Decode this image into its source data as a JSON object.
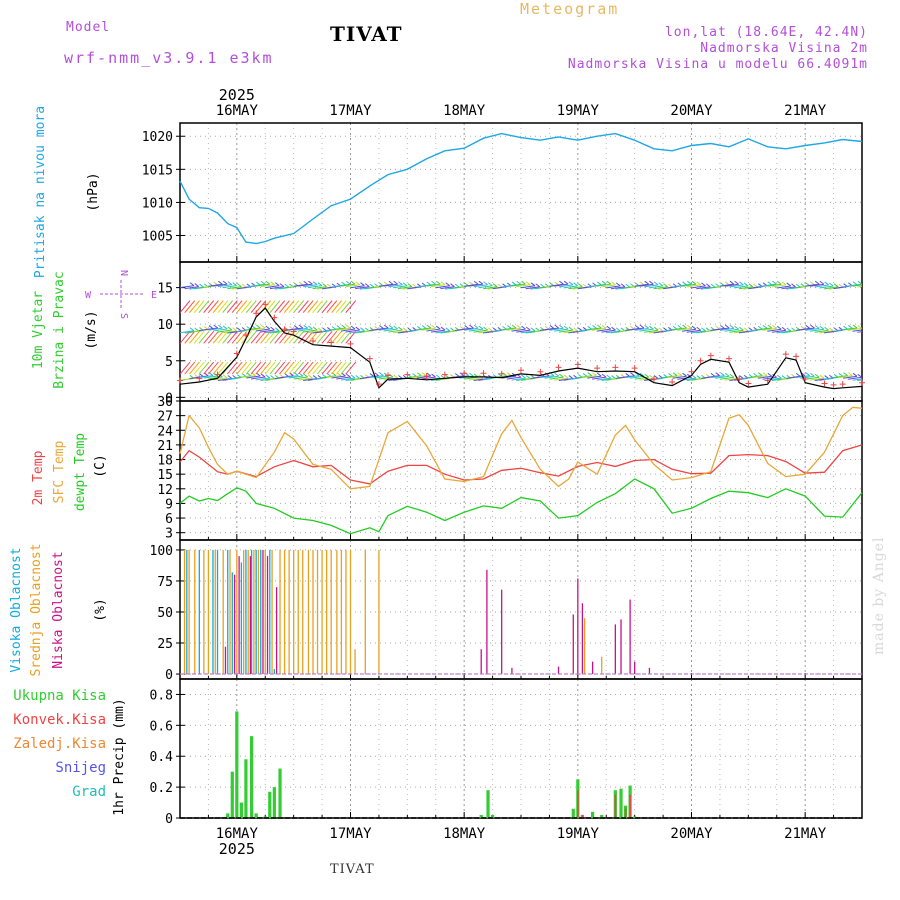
{
  "header": {
    "meteogram": "Meteogram",
    "model_label": "Model",
    "model_name": "wrf-nmm_v3.9.1 e3km",
    "station": "TIVAT",
    "lonlat": "lon,lat (18.64E, 42.4N)",
    "elevation": "Nadmorska Visina 2m",
    "model_elevation": "Nadmorska Visina u modelu 66.4091m",
    "footer_station": "TIVAT",
    "watermark": "made by Angel"
  },
  "colors": {
    "pressure": "#1ea7e6",
    "temp2m": "#ee4444",
    "sfc": "#e8a838",
    "dewpt": "#22cc22",
    "high_cloud": "#11aadd",
    "mid_cloud": "#e8a020",
    "low_cloud": "#cc1188",
    "total_precip": "#33cc33",
    "conv_precip": "#ee4444",
    "frz_precip": "#ee8833",
    "snow": "#5555ee",
    "graupel": "#22bbbb",
    "wind_obs": "#ee4444",
    "wind_line": "#000000"
  },
  "chart_data": {
    "type": "meteogram",
    "x_axis": {
      "range_days": [
        15.5,
        21.5
      ],
      "year": "2025",
      "tick_positions_days": [
        16,
        17,
        18,
        19,
        20,
        21
      ],
      "tick_labels": [
        "16MAY",
        "17MAY",
        "18MAY",
        "19MAY",
        "20MAY",
        "21MAY"
      ]
    },
    "panels": [
      {
        "name": "pressure",
        "type": "line",
        "title": "Pritisak na nivou mora",
        "units": "(hPa)",
        "ylim": [
          1001,
          1022
        ],
        "yticks": [
          1005,
          1010,
          1015,
          1020
        ],
        "series": [
          {
            "name": "Pritisak na nivou mora",
            "x": [
              15.5,
              15.58,
              15.67,
              15.75,
              15.83,
              15.92,
              16.0,
              16.08,
              16.17,
              16.25,
              16.33,
              16.5,
              16.67,
              16.83,
              17.0,
              17.17,
              17.33,
              17.5,
              17.67,
              17.83,
              18.0,
              18.17,
              18.33,
              18.5,
              18.67,
              18.83,
              19.0,
              19.17,
              19.33,
              19.5,
              19.67,
              19.83,
              20.0,
              20.17,
              20.33,
              20.5,
              20.67,
              20.83,
              21.0,
              21.17,
              21.33,
              21.5
            ],
            "values": [
              1013.2,
              1010.5,
              1009.2,
              1009.1,
              1008.4,
              1006.8,
              1006.2,
              1004.0,
              1003.8,
              1004.1,
              1004.6,
              1005.3,
              1007.5,
              1009.5,
              1010.5,
              1012.5,
              1014.2,
              1015.0,
              1016.6,
              1017.8,
              1018.2,
              1019.7,
              1020.4,
              1019.8,
              1019.4,
              1019.9,
              1019.4,
              1020.0,
              1020.4,
              1019.4,
              1018.1,
              1017.8,
              1018.6,
              1018.9,
              1018.4,
              1019.6,
              1018.4,
              1018.1,
              1018.6,
              1019.0,
              1019.5,
              1019.2
            ]
          }
        ]
      },
      {
        "name": "wind",
        "type": "line",
        "title": "10m Vjetar",
        "subtitle": "Brzina i Pravac",
        "units": "(m/s)",
        "ylim": [
          -0.5,
          18.5
        ],
        "yticks": [
          0,
          5,
          10,
          15
        ],
        "compass": {
          "n": "N",
          "s": "S",
          "w": "W",
          "e": "E"
        },
        "series": [
          {
            "name": "Brzina",
            "x": [
              15.5,
              15.67,
              15.83,
              16.0,
              16.08,
              16.17,
              16.25,
              16.33,
              16.42,
              16.5,
              16.67,
              16.83,
              17.0,
              17.17,
              17.25,
              17.33,
              17.5,
              17.67,
              17.83,
              18.0,
              18.17,
              18.33,
              18.5,
              18.67,
              18.83,
              19.0,
              19.17,
              19.33,
              19.5,
              19.67,
              19.83,
              20.0,
              20.08,
              20.17,
              20.33,
              20.42,
              20.5,
              20.67,
              20.83,
              20.92,
              21.0,
              21.17,
              21.25,
              21.33,
              21.5
            ],
            "values": [
              1.8,
              2.1,
              2.6,
              5.5,
              8.0,
              11.0,
              12.2,
              10.4,
              8.8,
              8.5,
              7.2,
              7.0,
              6.8,
              4.8,
              1.3,
              2.5,
              2.6,
              2.4,
              2.6,
              2.8,
              2.8,
              2.7,
              3.2,
              3.0,
              3.6,
              4.0,
              3.5,
              3.6,
              3.5,
              2.0,
              1.6,
              3.0,
              4.5,
              5.2,
              4.8,
              2.0,
              1.4,
              1.8,
              5.4,
              5.1,
              2.0,
              1.4,
              1.2,
              1.3,
              1.5
            ]
          }
        ]
      },
      {
        "name": "temperature",
        "type": "line",
        "title": "2m Temp",
        "subtitle": "SFC Temp",
        "subtitle2": "dewpt Temp",
        "units": "(C)",
        "ylim": [
          1.5,
          30
        ],
        "yticks": [
          3,
          6,
          9,
          12,
          15,
          18,
          21,
          24,
          27,
          30
        ],
        "series": [
          {
            "name": "2m Temp",
            "x": [
              15.5,
              15.58,
              15.67,
              15.75,
              15.83,
              15.92,
              16.0,
              16.17,
              16.33,
              16.5,
              16.67,
              16.83,
              17.0,
              17.17,
              17.33,
              17.5,
              17.67,
              17.83,
              18.0,
              18.17,
              18.33,
              18.5,
              18.67,
              18.83,
              19.0,
              19.17,
              19.33,
              19.5,
              19.67,
              19.83,
              20.0,
              20.17,
              20.33,
              20.5,
              20.67,
              20.83,
              21.0,
              21.17,
              21.33,
              21.5
            ],
            "values": [
              17.5,
              19.8,
              18.5,
              17.0,
              15.5,
              15.0,
              15.6,
              14.5,
              16.5,
              17.8,
              16.5,
              16.8,
              13.8,
              13.0,
              15.6,
              16.8,
              16.8,
              15.0,
              13.8,
              14.0,
              15.8,
              16.2,
              15.3,
              14.6,
              16.6,
              17.4,
              16.6,
              17.8,
              18.0,
              16.0,
              15.1,
              15.2,
              18.8,
              19.0,
              18.8,
              17.6,
              15.2,
              15.4,
              19.8,
              21.0
            ]
          },
          {
            "name": "SFC Temp",
            "x": [
              15.5,
              15.58,
              15.67,
              15.75,
              15.83,
              15.92,
              16.0,
              16.17,
              16.33,
              16.42,
              16.5,
              16.67,
              16.83,
              17.0,
              17.17,
              17.33,
              17.5,
              17.67,
              17.83,
              18.0,
              18.17,
              18.33,
              18.42,
              18.5,
              18.67,
              18.83,
              18.92,
              19.0,
              19.17,
              19.33,
              19.42,
              19.5,
              19.67,
              19.83,
              20.0,
              20.17,
              20.33,
              20.42,
              20.5,
              20.67,
              20.83,
              21.0,
              21.17,
              21.33,
              21.42,
              21.5
            ],
            "values": [
              19.2,
              27.0,
              24.5,
              20.5,
              17.0,
              15.0,
              15.6,
              14.3,
              19.5,
              23.5,
              22.2,
              17.0,
              16.0,
              12.0,
              12.5,
              23.5,
              25.8,
              20.8,
              14.0,
              13.5,
              14.5,
              23.3,
              26.0,
              22.5,
              16.0,
              12.5,
              14.0,
              17.5,
              15.0,
              23.0,
              25.0,
              22.0,
              17.0,
              13.8,
              14.3,
              15.5,
              26.5,
              27.2,
              25.0,
              17.2,
              14.5,
              15.0,
              19.5,
              27.0,
              28.7,
              28.5
            ]
          },
          {
            "name": "dewpt Temp",
            "x": [
              15.5,
              15.58,
              15.67,
              15.75,
              15.83,
              15.92,
              16.0,
              16.08,
              16.17,
              16.33,
              16.5,
              16.67,
              16.83,
              17.0,
              17.17,
              17.25,
              17.33,
              17.5,
              17.67,
              17.83,
              18.0,
              18.17,
              18.33,
              18.5,
              18.67,
              18.83,
              19.0,
              19.17,
              19.33,
              19.5,
              19.67,
              19.83,
              20.0,
              20.17,
              20.33,
              20.5,
              20.67,
              20.83,
              21.0,
              21.17,
              21.33,
              21.5
            ],
            "values": [
              9.0,
              10.5,
              9.5,
              10.0,
              9.6,
              11.0,
              12.2,
              11.5,
              9.0,
              8.0,
              6.0,
              5.5,
              4.5,
              2.8,
              4.0,
              3.2,
              6.5,
              8.4,
              7.2,
              5.5,
              7.2,
              8.5,
              8.0,
              10.2,
              9.5,
              6.0,
              6.5,
              9.2,
              11.0,
              14.0,
              12.0,
              7.0,
              8.0,
              10.0,
              11.5,
              11.2,
              10.2,
              12.0,
              10.5,
              6.4,
              6.2,
              11.2
            ]
          }
        ]
      },
      {
        "name": "cloud",
        "type": "bar",
        "title": "Visoka Oblacnost",
        "subtitle": "Srednja Oblacnost",
        "subtitle2": "Niska Oblacnost",
        "units": "(%)",
        "ylim": [
          -4,
          108
        ],
        "yticks": [
          0,
          25,
          50,
          75,
          100
        ],
        "series": [
          {
            "name": "Visoka Oblacnost",
            "x": [
              15.56,
              15.67,
              15.79,
              15.83,
              15.92,
              15.96,
              16.04,
              16.08,
              16.13,
              16.17,
              16.21,
              16.29,
              16.33
            ],
            "values": [
              100,
              100,
              100,
              100,
              100,
              82,
              90,
              100,
              100,
              100,
              100,
              100,
              4
            ]
          },
          {
            "name": "Srednja Oblacnost",
            "x": [
              15.54,
              15.58,
              15.63,
              15.71,
              15.75,
              15.81,
              15.88,
              15.94,
              16.0,
              16.06,
              16.1,
              16.15,
              16.19,
              16.25,
              16.31,
              16.38,
              16.42,
              16.46,
              16.5,
              16.54,
              16.58,
              16.63,
              16.67,
              16.71,
              16.75,
              16.79,
              16.83,
              16.88,
              16.92,
              16.96,
              17.0,
              17.04,
              17.13,
              17.25,
              19.06,
              19.21
            ],
            "values": [
              100,
              100,
              100,
              100,
              100,
              100,
              100,
              100,
              100,
              100,
              100,
              100,
              100,
              100,
              100,
              100,
              100,
              100,
              100,
              100,
              100,
              100,
              100,
              100,
              100,
              100,
              100,
              100,
              100,
              100,
              100,
              20,
              100,
              100,
              45,
              14
            ]
          },
          {
            "name": "Niska Oblacnost",
            "x": [
              15.9,
              15.98,
              16.02,
              16.12,
              16.23,
              16.27,
              16.35,
              18.15,
              18.2,
              18.33,
              18.42,
              18.83,
              18.96,
              19.0,
              19.04,
              19.13,
              19.33,
              19.38,
              19.46,
              19.5,
              19.63
            ],
            "values": [
              22,
              80,
              95,
              95,
              100,
              95,
              70,
              20,
              84,
              68,
              5,
              6,
              48,
              77,
              57,
              10,
              40,
              44,
              60,
              10,
              5
            ]
          }
        ]
      },
      {
        "name": "precip",
        "type": "bar",
        "title": "1hr Precip",
        "units": "(mm)",
        "ylim": [
          0,
          0.9
        ],
        "yticks": [
          0,
          0.2,
          0.4,
          0.6,
          0.8
        ],
        "legend": [
          "Ukupna Kisa",
          "Konvek.Kisa",
          "Zaledj.Kisa",
          "Snijeg",
          "Grad"
        ],
        "series": [
          {
            "name": "Ukupna Kisa",
            "x": [
              15.92,
              15.96,
              16.0,
              16.04,
              16.08,
              16.13,
              16.17,
              16.25,
              16.29,
              16.33,
              16.38,
              18.15,
              18.21,
              18.25,
              18.96,
              19.0,
              19.04,
              19.13,
              19.21,
              19.33,
              19.38,
              19.42,
              19.46,
              19.5
            ],
            "values": [
              0.03,
              0.3,
              0.69,
              0.1,
              0.38,
              0.53,
              0.03,
              0.01,
              0.17,
              0.2,
              0.32,
              0.02,
              0.18,
              0.02,
              0.06,
              0.25,
              0.02,
              0.04,
              0.02,
              0.18,
              0.19,
              0.08,
              0.21,
              0.01
            ]
          },
          {
            "name": "Konvek.Kisa",
            "x": [
              19.0,
              19.04,
              19.33,
              19.42,
              19.46
            ],
            "values": [
              0.18,
              0.02,
              0.15,
              0.06,
              0.15
            ]
          }
        ]
      }
    ]
  }
}
